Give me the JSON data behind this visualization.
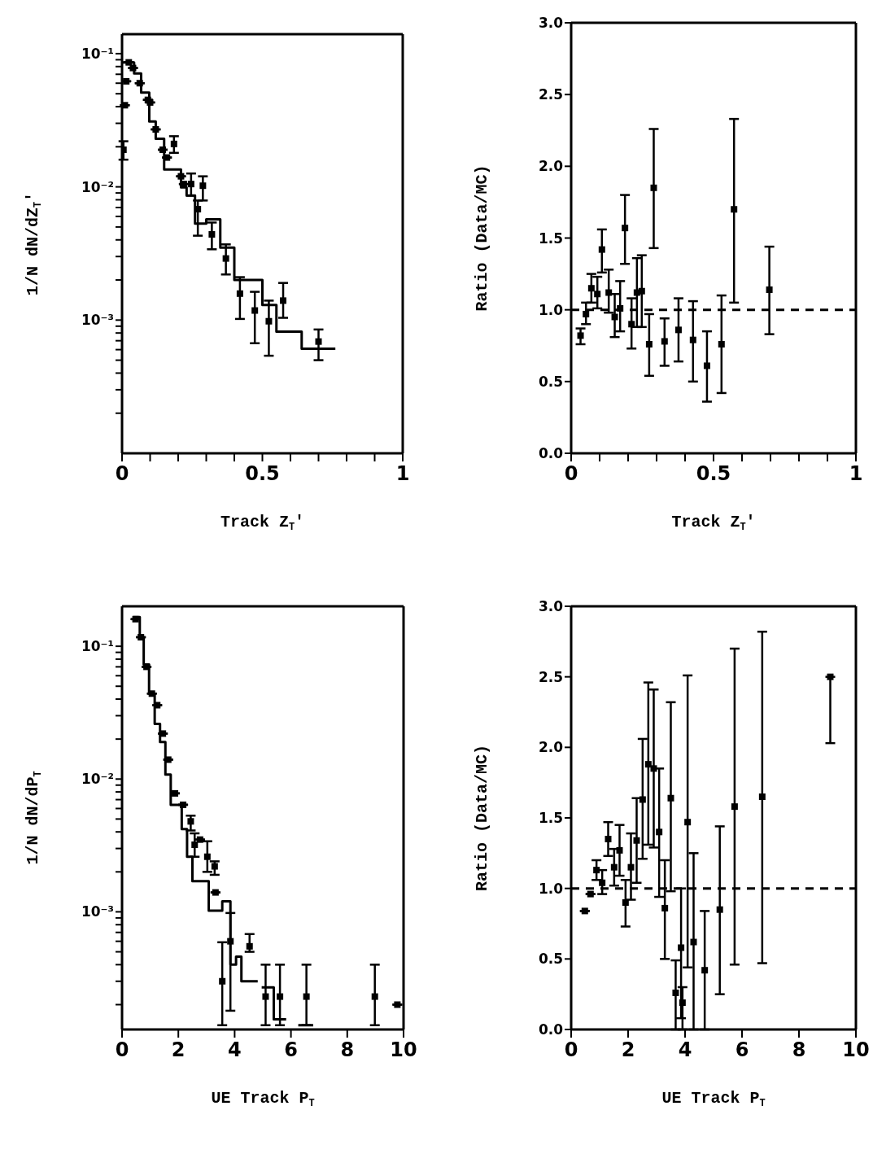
{
  "chart_data": [
    {
      "type": "scatter",
      "xlabel": "Track Z$_{T}$'",
      "ylabel": "1/N dN/dZ$_{T}$'",
      "log": true,
      "xlim": [
        0,
        1
      ],
      "xticks": [
        0,
        {
          "value": 0.1,
          "label": null
        },
        {
          "value": 0.2,
          "label": null
        },
        {
          "value": 0.3,
          "label": null
        },
        {
          "value": 0.4,
          "label": null
        },
        0.5,
        {
          "value": 0.6,
          "label": null
        },
        {
          "value": 0.7,
          "label": null
        },
        {
          "value": 0.8,
          "label": null
        },
        {
          "value": 0.9,
          "label": null
        },
        1
      ],
      "ylim": [
        0.0001,
        0.14
      ],
      "yticks": [
        {
          "value": 0.0002,
          "label": null
        },
        {
          "value": 0.0003,
          "label": null
        },
        {
          "value": 0.0004,
          "label": null
        },
        {
          "value": 0.0005,
          "label": null
        },
        {
          "value": 0.0006,
          "label": null
        },
        {
          "value": 0.0007,
          "label": null
        },
        {
          "value": 0.0008,
          "label": null
        },
        {
          "value": 0.0009,
          "label": null
        },
        {
          "value": 0.001,
          "label": "10⁻³"
        },
        {
          "value": 0.002,
          "label": null
        },
        {
          "value": 0.003,
          "label": null
        },
        {
          "value": 0.004,
          "label": null
        },
        {
          "value": 0.005,
          "label": null
        },
        {
          "value": 0.006,
          "label": null
        },
        {
          "value": 0.007,
          "label": null
        },
        {
          "value": 0.008,
          "label": null
        },
        {
          "value": 0.009,
          "label": null
        },
        {
          "value": 0.01,
          "label": "10⁻²"
        },
        {
          "value": 0.02,
          "label": null
        },
        {
          "value": 0.03,
          "label": null
        },
        {
          "value": 0.04,
          "label": null
        },
        {
          "value": 0.05,
          "label": null
        },
        {
          "value": 0.06,
          "label": null
        },
        {
          "value": 0.07,
          "label": null
        },
        {
          "value": 0.08,
          "label": null
        },
        {
          "value": 0.09,
          "label": null
        },
        {
          "value": 0.1,
          "label": "10⁻¹"
        }
      ],
      "series": [
        {
          "type": "step",
          "color": "#000000",
          "x": [
            0,
            0.043,
            0.068,
            0.097,
            0.12,
            0.15,
            0.18,
            0.21,
            0.23,
            0.26,
            0.3,
            0.35,
            0.4,
            0.5,
            0.55,
            0.64,
            0.76
          ],
          "values": [
            0.086,
            0.071,
            0.051,
            0.031,
            0.023,
            0.0135,
            0.0135,
            0.0099,
            0.0086,
            0.0053,
            0.0057,
            0.0035,
            0.002,
            0.0013,
            0.00082,
            0.00061,
            0.00061
          ]
        },
        {
          "type": "scatter",
          "marker": "square",
          "color": "#000000",
          "x": [
            0.005,
            0.01,
            0.015,
            0.024,
            0.039,
            0.063,
            0.092,
            0.1,
            0.12,
            0.145,
            0.16,
            0.185,
            0.21,
            0.22,
            0.246,
            0.27,
            0.288,
            0.32,
            0.37,
            0.42,
            0.473,
            0.523,
            0.574,
            0.7
          ],
          "values": [
            0.019,
            0.041,
            0.062,
            0.086,
            0.078,
            0.06,
            0.045,
            0.043,
            0.027,
            0.019,
            0.0166,
            0.021,
            0.012,
            0.0105,
            0.0105,
            0.0068,
            0.0102,
            0.0044,
            0.0029,
            0.00158,
            0.00118,
            0.00098,
            0.0014,
            0.00069
          ],
          "errors": [
            [
              0.016,
              0.022
            ],
            null,
            null,
            null,
            null,
            null,
            null,
            null,
            null,
            null,
            null,
            [
              0.018,
              0.024
            ],
            null,
            null,
            [
              0.0086,
              0.0126
            ],
            [
              0.0043,
              0.0079
            ],
            [
              0.0079,
              0.012
            ],
            [
              0.0034,
              0.0054
            ],
            [
              0.0022,
              0.0037
            ],
            [
              0.00102,
              0.0021
            ],
            [
              0.00067,
              0.00163
            ],
            [
              0.00054,
              0.0014
            ],
            [
              0.00104,
              0.0019
            ],
            [
              0.0005,
              0.00085
            ]
          ]
        }
      ]
    },
    {
      "type": "scatter",
      "xlabel": "Track Z$_{T}$'",
      "ylabel": "Ratio (Data/MC)",
      "xlim": [
        0,
        1
      ],
      "xticks": [
        0,
        {
          "value": 0.1,
          "label": null
        },
        {
          "value": 0.2,
          "label": null
        },
        {
          "value": 0.3,
          "label": null
        },
        {
          "value": 0.4,
          "label": null
        },
        0.5,
        {
          "value": 0.6,
          "label": null
        },
        {
          "value": 0.7,
          "label": null
        },
        {
          "value": 0.8,
          "label": null
        },
        {
          "value": 0.9,
          "label": null
        },
        1
      ],
      "ylim": [
        0,
        3
      ],
      "yticks": [
        {
          "value": 0,
          "label": "0.0"
        },
        {
          "value": 0.5,
          "label": "0.5"
        },
        {
          "value": 1,
          "label": "1.0"
        },
        {
          "value": 1.5,
          "label": "1.5"
        },
        {
          "value": 2,
          "label": "2.0"
        },
        {
          "value": 2.5,
          "label": "2.5"
        },
        {
          "value": 3,
          "label": "3.0"
        }
      ],
      "ref_lines": [
        {
          "axis": "y",
          "value": 1,
          "line_style": "dashed"
        }
      ],
      "series": [
        {
          "type": "scatter",
          "marker": "square",
          "color": "#000000",
          "x": [
            0.033,
            0.052,
            0.071,
            0.092,
            0.108,
            0.132,
            0.153,
            0.172,
            0.189,
            0.212,
            0.231,
            0.248,
            0.274,
            0.29,
            0.328,
            0.377,
            0.428,
            0.477,
            0.528,
            0.572,
            0.696
          ],
          "values": [
            0.82,
            0.97,
            1.15,
            1.11,
            1.42,
            1.12,
            0.95,
            1.01,
            1.57,
            0.9,
            1.12,
            1.13,
            0.76,
            1.85,
            0.78,
            0.86,
            0.79,
            0.61,
            0.76,
            1.7,
            1.14
          ],
          "errors": [
            [
              0.76,
              0.87
            ],
            [
              0.9,
              1.05
            ],
            [
              1.05,
              1.25
            ],
            [
              1.01,
              1.23
            ],
            [
              1.26,
              1.56
            ],
            [
              0.98,
              1.28
            ],
            [
              0.81,
              1.11
            ],
            [
              0.85,
              1.2
            ],
            [
              1.32,
              1.8
            ],
            [
              0.73,
              1.08
            ],
            [
              0.88,
              1.36
            ],
            [
              0.88,
              1.38
            ],
            [
              0.54,
              0.97
            ],
            [
              1.43,
              2.26
            ],
            [
              0.61,
              0.94
            ],
            [
              0.64,
              1.08
            ],
            [
              0.5,
              1.06
            ],
            [
              0.36,
              0.85
            ],
            [
              0.42,
              1.1
            ],
            [
              1.05,
              2.33
            ],
            [
              0.83,
              1.44
            ]
          ]
        }
      ]
    },
    {
      "type": "scatter",
      "xlabel": "UE Track P$_{T}$",
      "ylabel": "1/N dN/dP$_{T}$",
      "log": true,
      "xlim": [
        0,
        10
      ],
      "xticks": [
        0,
        2,
        4,
        6,
        8,
        10
      ],
      "ylim": [
        0.00013,
        0.2
      ],
      "yticks": [
        {
          "value": 0.0002,
          "label": null
        },
        {
          "value": 0.0003,
          "label": null
        },
        {
          "value": 0.0004,
          "label": null
        },
        {
          "value": 0.0005,
          "label": null
        },
        {
          "value": 0.0006,
          "label": null
        },
        {
          "value": 0.0007,
          "label": null
        },
        {
          "value": 0.0008,
          "label": null
        },
        {
          "value": 0.0009,
          "label": null
        },
        {
          "value": 0.001,
          "label": "10⁻³"
        },
        {
          "value": 0.002,
          "label": null
        },
        {
          "value": 0.003,
          "label": null
        },
        {
          "value": 0.004,
          "label": null
        },
        {
          "value": 0.005,
          "label": null
        },
        {
          "value": 0.006,
          "label": null
        },
        {
          "value": 0.007,
          "label": null
        },
        {
          "value": 0.008,
          "label": null
        },
        {
          "value": 0.009,
          "label": null
        },
        {
          "value": 0.01,
          "label": "10⁻²"
        },
        {
          "value": 0.02,
          "label": null
        },
        {
          "value": 0.03,
          "label": null
        },
        {
          "value": 0.04,
          "label": null
        },
        {
          "value": 0.05,
          "label": null
        },
        {
          "value": 0.06,
          "label": null
        },
        {
          "value": 0.07,
          "label": null
        },
        {
          "value": 0.08,
          "label": null
        },
        {
          "value": 0.09,
          "label": null
        },
        {
          "value": 0.1,
          "label": "10⁻¹"
        }
      ],
      "series": [
        {
          "type": "step",
          "color": "#000000",
          "x": [
            0.39,
            0.63,
            0.77,
            0.96,
            1.16,
            1.35,
            1.54,
            1.73,
            2.12,
            2.31,
            2.5,
            3.08,
            3.56,
            3.85,
            4.05,
            4.24,
            4.82,
            4.9,
            4.96,
            5.39,
            5.83,
            6.0,
            6.26,
            6.79
          ],
          "values": [
            0.166,
            0.117,
            0.073,
            0.044,
            0.026,
            0.019,
            0.0108,
            0.0064,
            0.0042,
            0.0026,
            0.0017,
            0.00102,
            0.0012,
            0.0004,
            0.00046,
            0.0003,
            0.0003,
            null,
            0.00027,
            0.000155,
            0.000155,
            null,
            0.00014,
            0.00014
          ]
        },
        {
          "type": "scatter",
          "marker": "square",
          "color": "#000000",
          "x": [
            0.48,
            0.67,
            0.87,
            1.06,
            1.25,
            1.45,
            1.64,
            1.88,
            2.17,
            2.44,
            2.58,
            2.77,
            3.03,
            3.29,
            3.32,
            3.56,
            3.85,
            4.53,
            5.1,
            5.61,
            6.55,
            8.98,
            9.78
          ],
          "values": [
            0.16,
            0.117,
            0.07,
            0.044,
            0.036,
            0.022,
            0.014,
            0.0078,
            0.0064,
            0.0048,
            0.0032,
            0.0035,
            0.0026,
            0.0022,
            0.0014,
            0.0003,
            0.0006,
            0.00055,
            0.00023,
            0.00023,
            0.00023,
            0.00023,
            0.0002
          ],
          "errors": [
            null,
            null,
            null,
            null,
            null,
            null,
            null,
            null,
            null,
            [
              0.0041,
              0.0053
            ],
            [
              0.0026,
              0.0039
            ],
            null,
            [
              0.002,
              0.0034
            ],
            [
              0.0019,
              0.0024
            ],
            null,
            [
              0.00014,
              0.00059
            ],
            [
              0.00018,
              0.00098
            ],
            [
              0.0005,
              0.00068
            ],
            [
              0.00014,
              0.0004
            ],
            [
              0.00014,
              0.0004
            ],
            [
              0.00014,
              0.0004
            ],
            [
              0.00014,
              0.0004
            ],
            null
          ]
        }
      ]
    },
    {
      "type": "scatter",
      "xlabel": "UE Track P$_{T}$",
      "ylabel": "Ratio (Data/MC)",
      "xlim": [
        0,
        10
      ],
      "xticks": [
        0,
        2,
        4,
        6,
        8,
        10
      ],
      "ylim": [
        0,
        3
      ],
      "yticks": [
        {
          "value": 0,
          "label": "0.0"
        },
        {
          "value": 0.5,
          "label": "0.5"
        },
        {
          "value": 1,
          "label": "1.0"
        },
        {
          "value": 1.5,
          "label": "1.5"
        },
        {
          "value": 2,
          "label": "2.0"
        },
        {
          "value": 2.5,
          "label": "2.5"
        },
        {
          "value": 3,
          "label": "3.0"
        }
      ],
      "ref_lines": [
        {
          "axis": "y",
          "value": 1,
          "line_style": "dashed"
        }
      ],
      "series": [
        {
          "type": "scatter",
          "marker": "square",
          "color": "#000000",
          "x": [
            0.48,
            0.68,
            0.89,
            1.09,
            1.3,
            1.51,
            1.7,
            1.91,
            2.1,
            2.3,
            2.51,
            2.71,
            2.9,
            3.09,
            3.29,
            3.5,
            3.67,
            3.86,
            3.91,
            4.09,
            4.3,
            4.69,
            5.22,
            5.74,
            6.71,
            9.1
          ],
          "values": [
            0.84,
            0.96,
            1.13,
            1.04,
            1.35,
            1.15,
            1.27,
            0.9,
            1.15,
            1.34,
            1.63,
            1.88,
            1.85,
            1.4,
            0.86,
            1.64,
            0.26,
            0.58,
            0.19,
            1.47,
            0.62,
            0.42,
            0.85,
            1.58,
            1.65,
            2.5
          ],
          "errors": [
            null,
            null,
            [
              1.06,
              1.2
            ],
            [
              0.96,
              1.13
            ],
            [
              1.23,
              1.47
            ],
            [
              1.02,
              1.28
            ],
            [
              1.09,
              1.45
            ],
            [
              0.73,
              1.06
            ],
            [
              0.92,
              1.39
            ],
            [
              1.04,
              1.64
            ],
            [
              1.21,
              2.06
            ],
            [
              1.31,
              2.46
            ],
            [
              1.29,
              2.41
            ],
            [
              0.94,
              1.85
            ],
            [
              0.5,
              1.2
            ],
            [
              0.98,
              2.32
            ],
            [
              0,
              0.49
            ],
            [
              0.08,
              1.0
            ],
            [
              0,
              0.3
            ],
            [
              0.44,
              2.51
            ],
            [
              0,
              1.25
            ],
            [
              0,
              0.84
            ],
            [
              0.25,
              1.44
            ],
            [
              0.46,
              2.7
            ],
            [
              0.47,
              2.82
            ],
            [
              2.03,
              2.5
            ]
          ]
        }
      ]
    }
  ]
}
